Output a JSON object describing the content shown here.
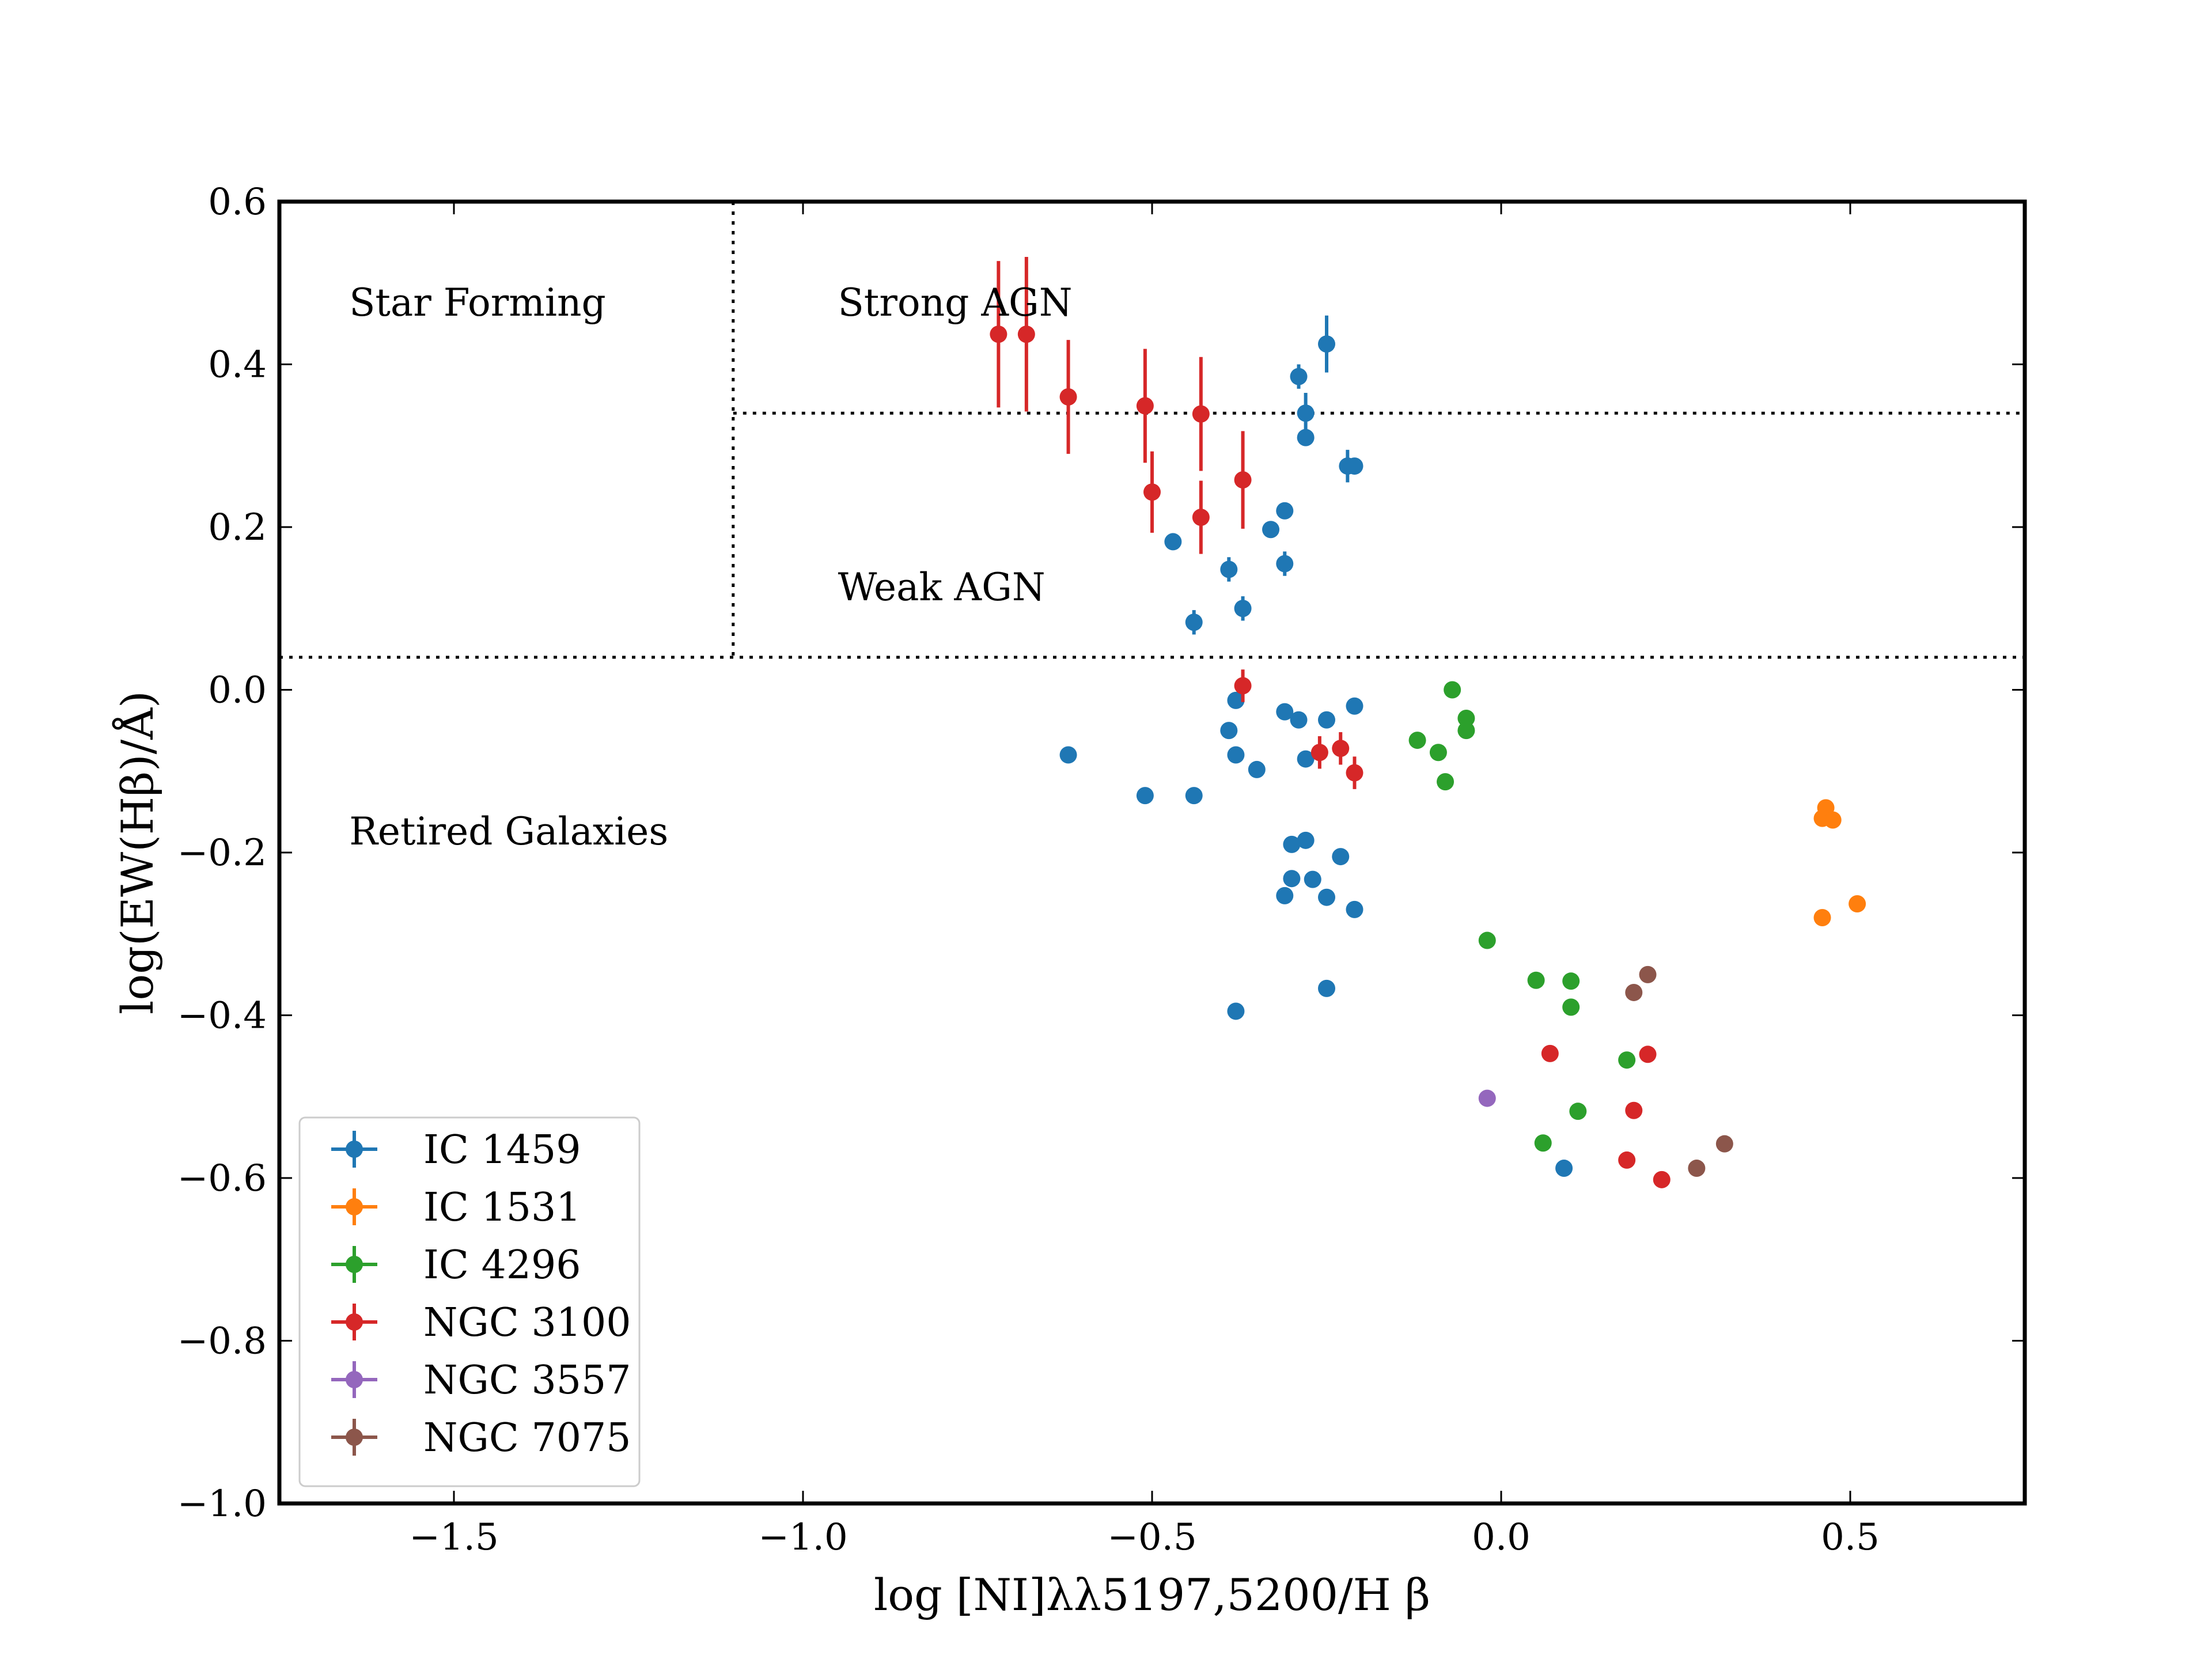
{
  "chart_data": {
    "type": "scatter",
    "title": "",
    "xlabel": "log [NI]λλ5197,5200/H β",
    "ylabel": "log(EW(Hβ)/Å)",
    "xlim": [
      -1.75,
      0.75
    ],
    "ylim": [
      -1.0,
      0.6
    ],
    "x_ticks": [
      -1.5,
      -1.0,
      -0.5,
      0.0,
      0.5
    ],
    "x_tick_labels": [
      "−1.5",
      "−1.0",
      "−0.5",
      "0.0",
      "0.5"
    ],
    "y_ticks": [
      -1.0,
      -0.8,
      -0.6,
      -0.4,
      -0.2,
      0.0,
      0.2,
      0.4,
      0.6
    ],
    "y_tick_labels": [
      "−1.0",
      "−0.8",
      "−0.6",
      "−0.4",
      "−0.2",
      "0.0",
      "0.2",
      "0.4",
      "0.6"
    ],
    "grid": false,
    "legend_position": "lower-left",
    "dividers": {
      "vertical_x": -1.1,
      "upper_horizontal_y": 0.34,
      "lower_horizontal_y": 0.04
    },
    "region_labels": [
      {
        "text": "Star Forming",
        "x": -1.65,
        "y": 0.46
      },
      {
        "text": "Strong AGN",
        "x": -0.95,
        "y": 0.46
      },
      {
        "text": "Weak AGN",
        "x": -0.95,
        "y": 0.11
      },
      {
        "text": "Retired Galaxies",
        "x": -1.65,
        "y": -0.19
      }
    ],
    "series": [
      {
        "name": "IC 1459",
        "color": "#1f77b4",
        "points": [
          [
            -0.25,
            0.425,
            0.035
          ],
          [
            -0.29,
            0.385,
            0.015
          ],
          [
            -0.28,
            0.34,
            0.025
          ],
          [
            -0.28,
            0.31,
            0.01
          ],
          [
            -0.22,
            0.275,
            0.02
          ],
          [
            -0.21,
            0.275,
            0.01
          ],
          [
            -0.31,
            0.22,
            0.01
          ],
          [
            -0.33,
            0.197,
            0.01
          ],
          [
            -0.47,
            0.182,
            0.01
          ],
          [
            -0.39,
            0.148,
            0.015
          ],
          [
            -0.31,
            0.155,
            0.015
          ],
          [
            -0.44,
            0.083,
            0.015
          ],
          [
            -0.37,
            0.1,
            0.015
          ],
          [
            -0.38,
            -0.013,
            0.01
          ],
          [
            -0.31,
            -0.027,
            0.01
          ],
          [
            -0.29,
            -0.037,
            0.01
          ],
          [
            -0.25,
            -0.037,
            0.01
          ],
          [
            -0.21,
            -0.02,
            0.01
          ],
          [
            -0.39,
            -0.05,
            0.01
          ],
          [
            -0.38,
            -0.08,
            0.01
          ],
          [
            -0.35,
            -0.098,
            0.01
          ],
          [
            -0.28,
            -0.085,
            0.01
          ],
          [
            -0.62,
            -0.08,
            0.01
          ],
          [
            -0.51,
            -0.13,
            0.01
          ],
          [
            -0.44,
            -0.13,
            0.01
          ],
          [
            -0.3,
            -0.19,
            0.01
          ],
          [
            -0.28,
            -0.185,
            0.01
          ],
          [
            -0.23,
            -0.205,
            0.01
          ],
          [
            -0.3,
            -0.232,
            0.01
          ],
          [
            -0.27,
            -0.233,
            0.01
          ],
          [
            -0.31,
            -0.253,
            0.01
          ],
          [
            -0.25,
            -0.255,
            0.01
          ],
          [
            -0.21,
            -0.27,
            0.01
          ],
          [
            -0.25,
            -0.367,
            0.01
          ],
          [
            -0.38,
            -0.395,
            0.01
          ],
          [
            0.09,
            -0.588,
            0.01
          ]
        ]
      },
      {
        "name": "IC 1531",
        "color": "#ff7f0e",
        "points": [
          [
            0.465,
            -0.145,
            0.01
          ],
          [
            0.46,
            -0.158,
            0.01
          ],
          [
            0.475,
            -0.16,
            0.01
          ],
          [
            0.46,
            -0.28,
            0.01
          ],
          [
            0.51,
            -0.263,
            0.01
          ]
        ]
      },
      {
        "name": "IC 4296",
        "color": "#2ca02c",
        "points": [
          [
            -0.07,
            0.0,
            0.01
          ],
          [
            -0.05,
            -0.035,
            0.01
          ],
          [
            -0.05,
            -0.05,
            0.01
          ],
          [
            -0.12,
            -0.062,
            0.01
          ],
          [
            -0.09,
            -0.077,
            0.01
          ],
          [
            -0.08,
            -0.113,
            0.01
          ],
          [
            -0.02,
            -0.308,
            0.01
          ],
          [
            0.05,
            -0.357,
            0.01
          ],
          [
            0.1,
            -0.358,
            0.01
          ],
          [
            0.1,
            -0.39,
            0.01
          ],
          [
            0.18,
            -0.455,
            0.01
          ],
          [
            0.11,
            -0.518,
            0.01
          ],
          [
            0.06,
            -0.557,
            0.01
          ]
        ]
      },
      {
        "name": "NGC 3100",
        "color": "#d62728",
        "points": [
          [
            -0.72,
            0.437,
            0.09
          ],
          [
            -0.68,
            0.437,
            0.095
          ],
          [
            -0.62,
            0.36,
            0.07
          ],
          [
            -0.51,
            0.349,
            0.07
          ],
          [
            -0.43,
            0.339,
            0.07
          ],
          [
            -0.5,
            0.243,
            0.05
          ],
          [
            -0.43,
            0.212,
            0.045
          ],
          [
            -0.37,
            0.258,
            0.06
          ],
          [
            -0.37,
            0.005,
            0.02
          ],
          [
            -0.26,
            -0.077,
            0.02
          ],
          [
            -0.23,
            -0.072,
            0.02
          ],
          [
            -0.21,
            -0.102,
            0.02
          ],
          [
            0.07,
            -0.447,
            0.01
          ],
          [
            0.21,
            -0.448,
            0.01
          ],
          [
            0.19,
            -0.517,
            0.01
          ],
          [
            0.18,
            -0.578,
            0.01
          ],
          [
            0.23,
            -0.602,
            0.01
          ]
        ]
      },
      {
        "name": "NGC 3557",
        "color": "#9467bd",
        "points": [
          [
            -0.02,
            -0.502,
            0.01
          ]
        ]
      },
      {
        "name": "NGC 7075",
        "color": "#8c564b",
        "points": [
          [
            0.21,
            -0.35,
            0.01
          ],
          [
            0.19,
            -0.372,
            0.01
          ],
          [
            0.32,
            -0.558,
            0.01
          ],
          [
            0.28,
            -0.588,
            0.01
          ]
        ]
      }
    ]
  }
}
